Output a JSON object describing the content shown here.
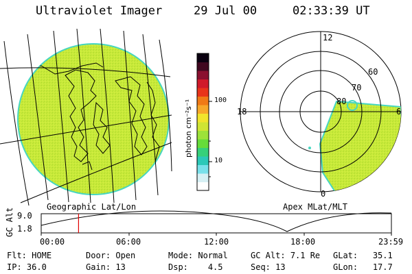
{
  "header": {
    "title": "Ultraviolet Imager",
    "date": "29 Jul 00",
    "time": "02:33:39 UT"
  },
  "colors": {
    "image_fill": "#c8ea3a",
    "image_noise": "#a8d428",
    "edge": "#46d6c0"
  },
  "geo_panel": {
    "label": "Geographic Lat/Lon"
  },
  "colorbar": {
    "unit_label": "photon cm⁻²s⁻¹",
    "ticks": [
      "100",
      "10"
    ],
    "stops": [
      "#ffffff",
      "#d6f0f4",
      "#79e0ea",
      "#2cc8b8",
      "#36d07a",
      "#66dc3a",
      "#9de23a",
      "#cfe534",
      "#f1e42c",
      "#f7a82a",
      "#f07a16",
      "#e8341a",
      "#d01a2a",
      "#8a1030",
      "#400820",
      "#0a0010"
    ]
  },
  "polar_panel": {
    "label": "Apex MLat/MLT",
    "mlt_labels": {
      "top": "12",
      "left": "18",
      "right": "6",
      "bottom": "0"
    },
    "lat_labels": [
      "60",
      "70",
      "80"
    ]
  },
  "timeline": {
    "axis_label": "GC Alt",
    "y_top": "9.0",
    "y_bottom": "1.8",
    "x_ticks": [
      "00:00",
      "06:00",
      "12:00",
      "18:00",
      "23:59"
    ],
    "current_time_hours": 2.56
  },
  "info": {
    "flt_label": "Flt:",
    "flt_value": "HOME",
    "ip_label": "IP:",
    "ip_value": "36.0",
    "door_label": "Door:",
    "door_value": "Open",
    "gain_label": "Gain:",
    "gain_value": "13",
    "mode_label": "Mode:",
    "mode_value": "Normal",
    "dsp_label": "Dsp:",
    "dsp_value": "4.5",
    "gcalt_label": "GC Alt:",
    "gcalt_value": "7.1 Re",
    "seq_label": "Seq:",
    "seq_value": "13",
    "glat_label": "GLat:",
    "glat_value": "35.1",
    "glon_label": "GLon:",
    "glon_value": "17.7"
  }
}
